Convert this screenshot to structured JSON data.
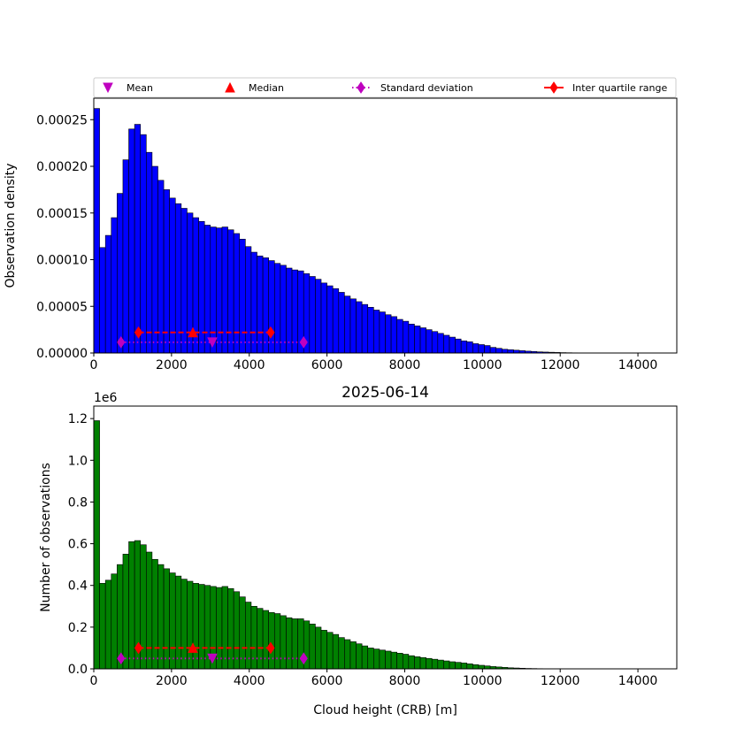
{
  "chart_data": [
    {
      "type": "bar",
      "ylabel": "Observation density",
      "xlim": [
        0,
        15000
      ],
      "ylim": [
        0,
        0.000273
      ],
      "bin_width": 150,
      "bar_color": "#0000ff",
      "xticks": [
        "0",
        "2000",
        "4000",
        "6000",
        "8000",
        "10000",
        "12000",
        "14000"
      ],
      "yticks": [
        "0.00000",
        "0.00005",
        "0.00010",
        "0.00015",
        "0.00020",
        "0.00025"
      ],
      "legend": {
        "placement": "top",
        "entries": [
          "Mean",
          "Median",
          "Standard deviation",
          "Inter quartile range"
        ]
      },
      "stats": {
        "mean": 3050,
        "mean_y": 1.15e-05,
        "median": 2550,
        "median_y": 2.2e-05,
        "std_range": [
          700,
          5400
        ],
        "std_y": 1.15e-05,
        "iqr_range": [
          1150,
          4550
        ],
        "iqr_y": 2.2e-05
      },
      "values": [
        0.000262,
        0.000113,
        0.000126,
        0.000145,
        0.000171,
        0.000207,
        0.00024,
        0.000245,
        0.000234,
        0.000215,
        0.0002,
        0.000185,
        0.000175,
        0.000166,
        0.00016,
        0.000155,
        0.00015,
        0.000145,
        0.000141,
        0.000137,
        0.000135,
        0.000134,
        0.000135,
        0.000132,
        0.000128,
        0.000122,
        0.000114,
        0.000108,
        0.000104,
        0.000102,
        9.9e-05,
        9.6e-05,
        9.4e-05,
        9.1e-05,
        8.9e-05,
        8.8e-05,
        8.5e-05,
        8.2e-05,
        7.9e-05,
        7.5e-05,
        7.2e-05,
        6.9e-05,
        6.5e-05,
        6.1e-05,
        5.8e-05,
        5.5e-05,
        5.2e-05,
        4.9e-05,
        4.6e-05,
        4.4e-05,
        4.1e-05,
        3.9e-05,
        3.6e-05,
        3.4e-05,
        3.1e-05,
        2.9e-05,
        2.7e-05,
        2.5e-05,
        2.3e-05,
        2.1e-05,
        1.9e-05,
        1.7e-05,
        1.5e-05,
        1.3e-05,
        1.2e-05,
        1e-05,
        9e-06,
        8e-06,
        6e-06,
        5e-06,
        4e-06,
        3.5e-06,
        3e-06,
        2.5e-06,
        2e-06,
        1.6e-06,
        1.2e-06,
        1e-06,
        8e-07,
        6e-07,
        4e-07,
        3e-07,
        2e-07,
        1e-07
      ]
    },
    {
      "type": "bar",
      "title": "2025-06-14",
      "xlabel": "Cloud height (CRB) [m]",
      "ylabel": "Number of observations",
      "y_offset_label": "1e6",
      "xlim": [
        0,
        15000
      ],
      "ylim": [
        0,
        1.26
      ],
      "bin_width": 150,
      "bar_color": "#008000",
      "xticks": [
        "0",
        "2000",
        "4000",
        "6000",
        "8000",
        "10000",
        "12000",
        "14000"
      ],
      "yticks": [
        "0.0",
        "0.2",
        "0.4",
        "0.6",
        "0.8",
        "1.0",
        "1.2"
      ],
      "stats": {
        "mean": 3050,
        "mean_y": 0.05,
        "median": 2550,
        "median_y": 0.1,
        "std_range": [
          700,
          5400
        ],
        "std_y": 0.05,
        "iqr_range": [
          1150,
          4550
        ],
        "iqr_y": 0.1
      },
      "values": [
        1.19,
        0.41,
        0.425,
        0.455,
        0.5,
        0.55,
        0.61,
        0.615,
        0.595,
        0.56,
        0.525,
        0.5,
        0.48,
        0.46,
        0.445,
        0.43,
        0.42,
        0.41,
        0.405,
        0.4,
        0.395,
        0.39,
        0.395,
        0.385,
        0.37,
        0.345,
        0.32,
        0.3,
        0.29,
        0.28,
        0.27,
        0.265,
        0.255,
        0.245,
        0.24,
        0.24,
        0.23,
        0.215,
        0.2,
        0.185,
        0.175,
        0.165,
        0.15,
        0.14,
        0.13,
        0.12,
        0.11,
        0.1,
        0.095,
        0.09,
        0.085,
        0.08,
        0.075,
        0.07,
        0.063,
        0.058,
        0.054,
        0.05,
        0.046,
        0.042,
        0.038,
        0.034,
        0.031,
        0.028,
        0.024,
        0.02,
        0.017,
        0.014,
        0.011,
        0.009,
        0.007,
        0.005,
        0.004,
        0.003,
        0.002,
        0.0015,
        0.001,
        0.0008,
        0.0006,
        0.0004,
        0.0003,
        0.0002,
        0.0001,
        0.0001
      ]
    }
  ]
}
